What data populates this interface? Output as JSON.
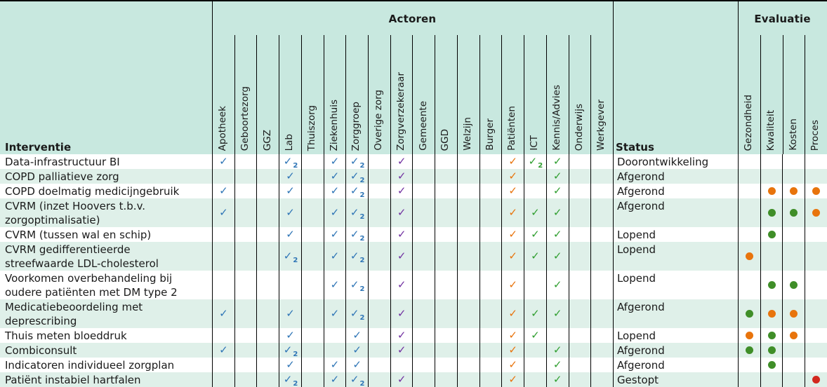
{
  "table": {
    "intervention_header": "Interventie",
    "status_header": "Status",
    "actors_group_title": "Actoren",
    "evaluation_group_title": "Evaluatie",
    "actors": [
      "Apotheek",
      "Geboortezorg",
      "GGZ",
      "Lab",
      "Thuiszorg",
      "Ziekenhuis",
      "Zorggroep",
      "Overige zorg",
      "Zorgverzekeraar",
      "Gemeente",
      "GGD",
      "Welzijn",
      "Burger",
      "Patiënten",
      "ICT",
      "Kennis/Advies",
      "Onderwijs",
      "Werkgever"
    ],
    "evaluation_columns": [
      "Gezondheid",
      "Kwaliteit",
      "Kosten",
      "Proces"
    ],
    "mark_colors": {
      "blue": "#2E75B6",
      "purple": "#7030A0",
      "orange": "#E8730B",
      "green": "#2F9E2F"
    },
    "dot_colors": {
      "green": "#3F8E28",
      "orange": "#E8740C",
      "red": "#D2281E"
    },
    "rows": [
      {
        "intervention": "Data-infrastructuur BI",
        "status": "Doorontwikkeling",
        "marks": {
          "Apotheek": {
            "color": "blue"
          },
          "Lab": {
            "color": "blue",
            "sub": "2"
          },
          "Ziekenhuis": {
            "color": "blue"
          },
          "Zorggroep": {
            "color": "blue",
            "sub": "2"
          },
          "Zorgverzekeraar": {
            "color": "purple"
          },
          "Patiënten": {
            "color": "orange"
          },
          "ICT": {
            "color": "green",
            "sub": "2"
          },
          "Kennis/Advies": {
            "color": "green"
          }
        },
        "evaluation": {}
      },
      {
        "intervention": "COPD palliatieve zorg",
        "status": "Afgerond",
        "marks": {
          "Lab": {
            "color": "blue"
          },
          "Ziekenhuis": {
            "color": "blue"
          },
          "Zorggroep": {
            "color": "blue",
            "sub": "2"
          },
          "Zorgverzekeraar": {
            "color": "purple"
          },
          "Patiënten": {
            "color": "orange"
          },
          "Kennis/Advies": {
            "color": "green"
          }
        },
        "evaluation": {}
      },
      {
        "intervention": "COPD doelmatig medicijngebruik",
        "status": "Afgerond",
        "marks": {
          "Apotheek": {
            "color": "blue"
          },
          "Lab": {
            "color": "blue"
          },
          "Ziekenhuis": {
            "color": "blue"
          },
          "Zorggroep": {
            "color": "blue",
            "sub": "2"
          },
          "Zorgverzekeraar": {
            "color": "purple"
          },
          "Patiënten": {
            "color": "orange"
          },
          "Kennis/Advies": {
            "color": "green"
          }
        },
        "evaluation": {
          "Kwaliteit": "orange",
          "Kosten": "orange",
          "Proces": "orange"
        }
      },
      {
        "intervention": "CVRM (inzet Hoovers t.b.v.\nzorgoptimalisatie)",
        "status": "Afgerond",
        "marks": {
          "Apotheek": {
            "color": "blue"
          },
          "Lab": {
            "color": "blue"
          },
          "Ziekenhuis": {
            "color": "blue"
          },
          "Zorggroep": {
            "color": "blue",
            "sub": "2"
          },
          "Zorgverzekeraar": {
            "color": "purple"
          },
          "Patiënten": {
            "color": "orange"
          },
          "ICT": {
            "color": "green"
          },
          "Kennis/Advies": {
            "color": "green"
          }
        },
        "evaluation": {
          "Kwaliteit": "green",
          "Kosten": "green",
          "Proces": "orange"
        }
      },
      {
        "intervention": "CVRM (tussen wal en schip)",
        "status": "Lopend",
        "marks": {
          "Lab": {
            "color": "blue"
          },
          "Ziekenhuis": {
            "color": "blue"
          },
          "Zorggroep": {
            "color": "blue",
            "sub": "2"
          },
          "Zorgverzekeraar": {
            "color": "purple"
          },
          "Patiënten": {
            "color": "orange"
          },
          "ICT": {
            "color": "green"
          },
          "Kennis/Advies": {
            "color": "green"
          }
        },
        "evaluation": {
          "Kwaliteit": "green"
        }
      },
      {
        "intervention": "CVRM gedifferentieerde\nstreefwaarde LDL-cholesterol",
        "status": "Lopend",
        "marks": {
          "Lab": {
            "color": "blue",
            "sub": "2"
          },
          "Ziekenhuis": {
            "color": "blue"
          },
          "Zorggroep": {
            "color": "blue",
            "sub": "2"
          },
          "Zorgverzekeraar": {
            "color": "purple"
          },
          "Patiënten": {
            "color": "orange"
          },
          "ICT": {
            "color": "green"
          },
          "Kennis/Advies": {
            "color": "green"
          }
        },
        "evaluation": {
          "Gezondheid": "orange"
        }
      },
      {
        "intervention": "Voorkomen overbehandeling bij\noudere patiënten met DM type 2",
        "status": "Lopend",
        "marks": {
          "Ziekenhuis": {
            "color": "blue"
          },
          "Zorggroep": {
            "color": "blue",
            "sub": "2"
          },
          "Zorgverzekeraar": {
            "color": "purple"
          },
          "Patiënten": {
            "color": "orange"
          },
          "Kennis/Advies": {
            "color": "green"
          }
        },
        "evaluation": {
          "Kwaliteit": "green",
          "Kosten": "green"
        }
      },
      {
        "intervention": "Medicatiebeoordeling met\ndeprescribing",
        "status": "Afgerond",
        "marks": {
          "Apotheek": {
            "color": "blue"
          },
          "Lab": {
            "color": "blue"
          },
          "Ziekenhuis": {
            "color": "blue"
          },
          "Zorggroep": {
            "color": "blue",
            "sub": "2"
          },
          "Zorgverzekeraar": {
            "color": "purple"
          },
          "Patiënten": {
            "color": "orange"
          },
          "ICT": {
            "color": "green"
          },
          "Kennis/Advies": {
            "color": "green"
          }
        },
        "evaluation": {
          "Gezondheid": "green",
          "Kwaliteit": "orange",
          "Kosten": "orange"
        }
      },
      {
        "intervention": "Thuis meten bloeddruk",
        "status": "Lopend",
        "marks": {
          "Lab": {
            "color": "blue"
          },
          "Zorggroep": {
            "color": "blue"
          },
          "Zorgverzekeraar": {
            "color": "purple"
          },
          "Patiënten": {
            "color": "orange"
          },
          "ICT": {
            "color": "green"
          }
        },
        "evaluation": {
          "Gezondheid": "orange",
          "Kwaliteit": "green",
          "Kosten": "orange"
        }
      },
      {
        "intervention": "Combiconsult",
        "status": "Afgerond",
        "marks": {
          "Apotheek": {
            "color": "blue"
          },
          "Lab": {
            "color": "blue",
            "sub": "2"
          },
          "Zorggroep": {
            "color": "blue"
          },
          "Zorgverzekeraar": {
            "color": "purple"
          },
          "Patiënten": {
            "color": "orange"
          },
          "Kennis/Advies": {
            "color": "green"
          }
        },
        "evaluation": {
          "Gezondheid": "green",
          "Kwaliteit": "green"
        }
      },
      {
        "intervention": "Indicatoren individueel zorgplan",
        "status": "Afgerond",
        "marks": {
          "Lab": {
            "color": "blue"
          },
          "Ziekenhuis": {
            "color": "blue"
          },
          "Zorggroep": {
            "color": "blue"
          },
          "Patiënten": {
            "color": "orange"
          },
          "Kennis/Advies": {
            "color": "green"
          }
        },
        "evaluation": {
          "Kwaliteit": "green"
        }
      },
      {
        "intervention": "Patiënt instabiel hartfalen",
        "status": "Gestopt",
        "marks": {
          "Lab": {
            "color": "blue",
            "sub": "2"
          },
          "Ziekenhuis": {
            "color": "blue"
          },
          "Zorggroep": {
            "color": "blue",
            "sub": "2"
          },
          "Zorgverzekeraar": {
            "color": "purple"
          },
          "Patiënten": {
            "color": "orange"
          },
          "Kennis/Advies": {
            "color": "green"
          }
        },
        "evaluation": {
          "Proces": "red"
        }
      }
    ]
  }
}
